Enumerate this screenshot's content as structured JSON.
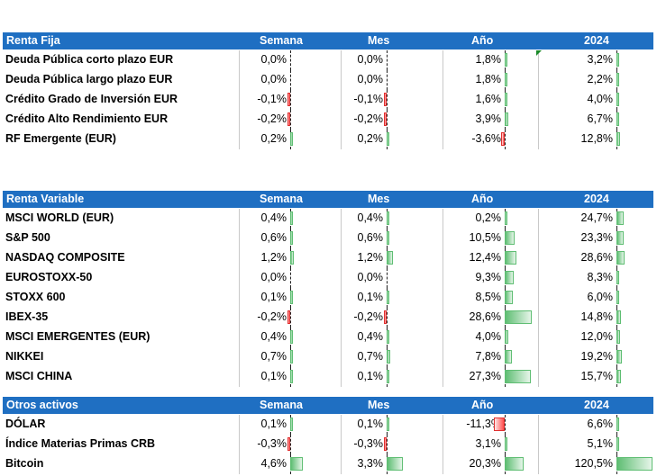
{
  "columns": [
    "Semana",
    "Mes",
    "Año",
    "2024"
  ],
  "sections": [
    {
      "title": "Renta Fija",
      "rows": [
        {
          "name": "Deuda Pública corto plazo EUR",
          "values": [
            "0,0%",
            "0,0%",
            "1,8%",
            "3,2%"
          ],
          "nums": [
            0.0,
            0.0,
            1.8,
            3.2
          ]
        },
        {
          "name": "Deuda Pública largo plazo EUR",
          "values": [
            "0,0%",
            "0,0%",
            "1,8%",
            "2,2%"
          ],
          "nums": [
            0.0,
            0.0,
            1.8,
            2.2
          ]
        },
        {
          "name": "Crédito Grado de Inversión EUR",
          "values": [
            "-0,1%",
            "-0,1%",
            "1,6%",
            "4,0%"
          ],
          "nums": [
            -0.1,
            -0.1,
            1.6,
            4.0
          ]
        },
        {
          "name": "Crédito Alto Rendimiento EUR",
          "values": [
            "-0,2%",
            "-0,2%",
            "3,9%",
            "6,7%"
          ],
          "nums": [
            -0.2,
            -0.2,
            3.9,
            6.7
          ]
        },
        {
          "name": "RF Emergente (EUR)",
          "values": [
            "0,2%",
            "0,2%",
            "-3,6%",
            "12,8%"
          ],
          "nums": [
            0.2,
            0.2,
            -3.6,
            12.8
          ]
        }
      ]
    },
    {
      "title": "Renta Variable",
      "rows": [
        {
          "name": "MSCI WORLD (EUR)",
          "values": [
            "0,4%",
            "0,4%",
            "0,2%",
            "24,7%"
          ],
          "nums": [
            0.4,
            0.4,
            0.2,
            24.7
          ]
        },
        {
          "name": "S&P 500",
          "values": [
            "0,6%",
            "0,6%",
            "10,5%",
            "23,3%"
          ],
          "nums": [
            0.6,
            0.6,
            10.5,
            23.3
          ]
        },
        {
          "name": "NASDAQ COMPOSITE",
          "values": [
            "1,2%",
            "1,2%",
            "12,4%",
            "28,6%"
          ],
          "nums": [
            1.2,
            1.2,
            12.4,
            28.6
          ]
        },
        {
          "name": "EUROSTOXX-50",
          "values": [
            "0,0%",
            "0,0%",
            "9,3%",
            "8,3%"
          ],
          "nums": [
            0.0,
            0.0,
            9.3,
            8.3
          ]
        },
        {
          "name": "STOXX 600",
          "values": [
            "0,1%",
            "0,1%",
            "8,5%",
            "6,0%"
          ],
          "nums": [
            0.1,
            0.1,
            8.5,
            6.0
          ]
        },
        {
          "name": "IBEX-35",
          "values": [
            "-0,2%",
            "-0,2%",
            "28,6%",
            "14,8%"
          ],
          "nums": [
            -0.2,
            -0.2,
            28.6,
            14.8
          ]
        },
        {
          "name": "MSCI EMERGENTES (EUR)",
          "values": [
            "0,4%",
            "0,4%",
            "4,0%",
            "12,0%"
          ],
          "nums": [
            0.4,
            0.4,
            4.0,
            12.0
          ]
        },
        {
          "name": "NIKKEI",
          "values": [
            "0,7%",
            "0,7%",
            "7,8%",
            "19,2%"
          ],
          "nums": [
            0.7,
            0.7,
            7.8,
            19.2
          ]
        },
        {
          "name": "MSCI CHINA",
          "values": [
            "0,1%",
            "0,1%",
            "27,3%",
            "15,7%"
          ],
          "nums": [
            0.1,
            0.1,
            27.3,
            15.7
          ]
        }
      ]
    },
    {
      "title": "Otros activos",
      "rows": [
        {
          "name": "DÓLAR",
          "values": [
            "0,1%",
            "0,1%",
            "-11,3%",
            "6,6%"
          ],
          "nums": [
            0.1,
            0.1,
            -11.3,
            6.6
          ]
        },
        {
          "name": "Índice Materias Primas CRB",
          "values": [
            "-0,3%",
            "-0,3%",
            "3,1%",
            "5,1%"
          ],
          "nums": [
            -0.3,
            -0.3,
            3.1,
            5.1
          ]
        },
        {
          "name": "Bitcoin",
          "values": [
            "4,6%",
            "3,3%",
            "20,3%",
            "120,5%"
          ],
          "nums": [
            4.6,
            3.3,
            20.3,
            120.5
          ]
        }
      ]
    }
  ],
  "colors": {
    "header_bg": "#1f6fc2",
    "positive_bar": "#5fbe73",
    "negative_bar": "#e03030"
  }
}
